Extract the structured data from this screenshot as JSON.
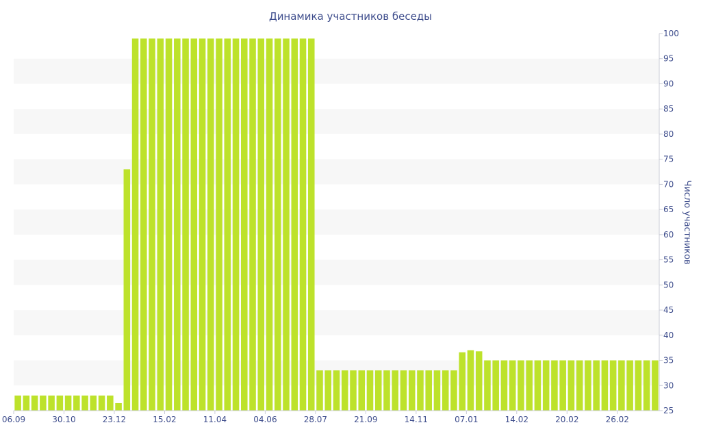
{
  "chart_data": {
    "type": "bar",
    "title": "Динамика участников беседы",
    "ylabel": "Число участников",
    "xlabel": "",
    "y_axis_side": "right",
    "ylim": [
      25,
      100
    ],
    "y_ticks": [
      25,
      30,
      35,
      40,
      45,
      50,
      55,
      60,
      65,
      70,
      75,
      80,
      85,
      90,
      95,
      100
    ],
    "x_tick_labels": [
      {
        "label": "06.09",
        "index": 0
      },
      {
        "label": "30.10",
        "index": 6
      },
      {
        "label": "23.12",
        "index": 12
      },
      {
        "label": "15.02",
        "index": 18
      },
      {
        "label": "11.04",
        "index": 24
      },
      {
        "label": "04.06",
        "index": 30
      },
      {
        "label": "28.07",
        "index": 36
      },
      {
        "label": "21.09",
        "index": 42
      },
      {
        "label": "14.11",
        "index": 48
      },
      {
        "label": "07.01",
        "index": 54
      },
      {
        "label": "14.02",
        "index": 60
      },
      {
        "label": "20.02",
        "index": 66
      },
      {
        "label": "26.02",
        "index": 72
      }
    ],
    "grid": "alternating horizontal bands",
    "bar_color": "#bde22b",
    "band_color": "#f7f7f7",
    "text_color": "#3e4d8c",
    "values": [
      28,
      28,
      28,
      28,
      28,
      28,
      28,
      28,
      28,
      28,
      28,
      28,
      26.5,
      73,
      99,
      99,
      99,
      99,
      99,
      99,
      99,
      99,
      99,
      99,
      99,
      99,
      99,
      99,
      99,
      99,
      99,
      99,
      99,
      99,
      99,
      99,
      33,
      33,
      33,
      33,
      33,
      33,
      33,
      33,
      33,
      33,
      33,
      33,
      33,
      33,
      33,
      33,
      33,
      36.6,
      37,
      36.8,
      35,
      35,
      35,
      35,
      35,
      35,
      35,
      35,
      35,
      35,
      35,
      35,
      35,
      35,
      35,
      35,
      35,
      35,
      35,
      35,
      35
    ]
  }
}
